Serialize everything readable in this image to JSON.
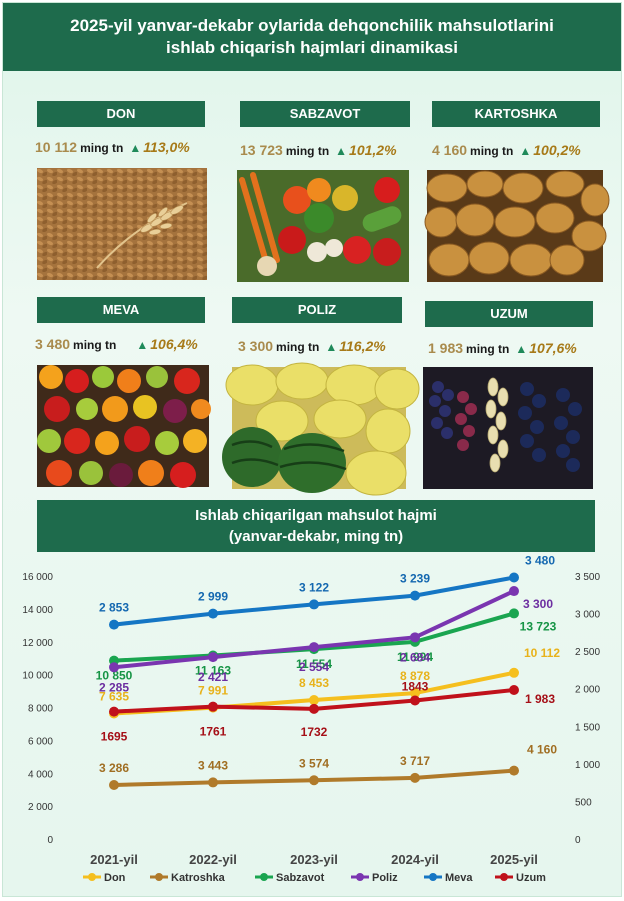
{
  "header": {
    "line1": "2025-yil yanvar-dekabr oylarida dehqonchilik mahsulotlarini",
    "line2": "ishlab chiqarish hajmlari dinamikasi"
  },
  "cards": [
    {
      "title": "DON",
      "value": "10 112",
      "unit": "ming tn",
      "growth": "113,0%",
      "photo": "wheat-grain-photo"
    },
    {
      "title": "SABZAVOT",
      "value": "13 723",
      "unit": "ming tn",
      "growth": "101,2%",
      "photo": "vegetables-photo"
    },
    {
      "title": "KARTOSHKA",
      "value": "4 160",
      "unit": "ming tn",
      "growth": "100,2%",
      "photo": "potatoes-photo"
    },
    {
      "title": "MEVA",
      "value": "3 480",
      "unit": "ming tn",
      "growth": "106,4%",
      "photo": "fruits-photo"
    },
    {
      "title": "POLIZ",
      "value": "3 300",
      "unit": "ming tn",
      "growth": "116,2%",
      "photo": "melons-photo"
    },
    {
      "title": "UZUM",
      "value": "1 983",
      "unit": "ming tn",
      "growth": "107,6%",
      "photo": "grapes-photo"
    }
  ],
  "chart_header": {
    "line1": "Ishlab chiqarilgan mahsulot hajmi",
    "line2": "(yanvar-dekabr, ming tn)"
  },
  "chart_data": {
    "type": "line",
    "categories": [
      "2021-yil",
      "2022-yil",
      "2023-yil",
      "2024-yil",
      "2025-yil"
    ],
    "y_left": {
      "range": [
        0,
        16000
      ],
      "ticks": [
        "0",
        "2 000",
        "4 000",
        "6 000",
        "8 000",
        "10 000",
        "12 000",
        "14 000",
        "16 000"
      ]
    },
    "y_right": {
      "range": [
        0,
        3500
      ],
      "ticks": [
        "0",
        "500",
        "1 000",
        "1 500",
        "2 000",
        "2 500",
        "3 000",
        "3 500"
      ]
    },
    "series": [
      {
        "name": "Don",
        "color": "#f5bf1e",
        "label_color": "#e8b21a",
        "axis": "left",
        "values": [
          7635,
          7991,
          8453,
          8878,
          10112
        ],
        "labels": [
          "7 635",
          "7 991",
          "8 453",
          "8 878",
          "10 112"
        ]
      },
      {
        "name": "Katroshka",
        "color": "#b07a2a",
        "label_color": "#a06e22",
        "axis": "left",
        "values": [
          3286,
          3443,
          3574,
          3717,
          4160
        ],
        "labels": [
          "3 286",
          "3 443",
          "3 574",
          "3 717",
          "4 160"
        ]
      },
      {
        "name": "Sabzavot",
        "color": "#1aa550",
        "label_color": "#169445",
        "axis": "left",
        "values": [
          10850,
          11163,
          11554,
          11994,
          13723
        ],
        "labels": [
          "10 850",
          "11 163",
          "11 554",
          "11 994",
          "13 723"
        ]
      },
      {
        "name": "Poliz",
        "color": "#7a35b0",
        "label_color": "#6c2ea0",
        "axis": "right",
        "values": [
          2285,
          2421,
          2554,
          2684,
          3300
        ],
        "labels": [
          "2 285",
          "2 421",
          "2 554",
          "2 684",
          "3 300"
        ]
      },
      {
        "name": "Meva",
        "color": "#1576c4",
        "label_color": "#1468b0",
        "axis": "right",
        "values": [
          2853,
          2999,
          3122,
          3239,
          3480
        ],
        "labels": [
          "2 853",
          "2 999",
          "3 122",
          "3 239",
          "3 480"
        ]
      },
      {
        "name": "Uzum",
        "color": "#c0111b",
        "label_color": "#a50f17",
        "axis": "right",
        "values": [
          1695,
          1761,
          1732,
          1843,
          1983
        ],
        "labels": [
          "1695",
          "1761",
          "1732",
          "1843",
          "1 983"
        ]
      }
    ],
    "legend_position": "bottom",
    "grid": false
  }
}
